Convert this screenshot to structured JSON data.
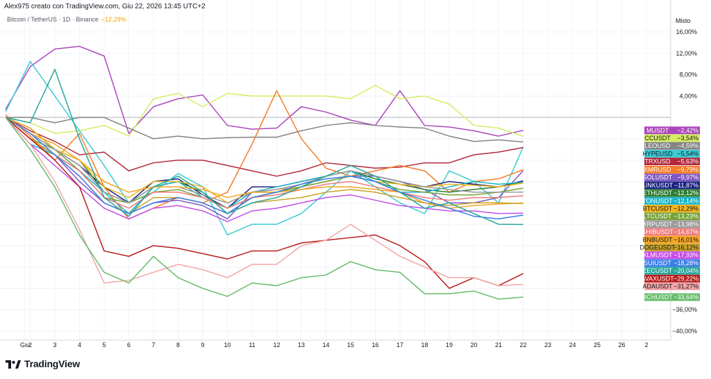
{
  "header": {
    "credit": "Alex975 creato con TradingView.com, Giu 22, 2026 13:45 UTC+2",
    "symbol": "Bitcoin / TetherUS · 1D · Binance",
    "change": "−12,29%"
  },
  "logo": {
    "text": "TradingView",
    "icon": "tradingview-logo-icon"
  },
  "chart_data": {
    "type": "line",
    "scale_label": "Misto",
    "ylim": [
      -42,
      18
    ],
    "y_ticks": [
      {
        "v": 16,
        "label": "16,00%"
      },
      {
        "v": 12,
        "label": "12,00%"
      },
      {
        "v": 8,
        "label": "8,00%"
      },
      {
        "v": 4,
        "label": "4,00%"
      },
      {
        "v": -28,
        "label": "−28,00%"
      },
      {
        "v": -36,
        "label": "−36,00%"
      },
      {
        "v": -40,
        "label": "−40,00%"
      }
    ],
    "x_ticks": [
      "Giu",
      "2",
      "3",
      "4",
      "5",
      "6",
      "7",
      "8",
      "9",
      "10",
      "11",
      "12",
      "13",
      "14",
      "15",
      "16",
      "17",
      "18",
      "19",
      "20",
      "21",
      "22",
      "23",
      "24",
      "25",
      "26",
      "2"
    ],
    "x_start": 0,
    "grid": true,
    "zero_line": 0,
    "series": [
      {
        "name": "MUSDT",
        "label": "−2,42%",
        "value": -2.42,
        "color": "#ab47bc",
        "values": [
          1.5,
          9.5,
          12.8,
          13.3,
          11.5,
          -3,
          2,
          3.5,
          4.2,
          -1.5,
          -2.2,
          -2,
          2,
          1,
          -0.5,
          -1.5,
          5,
          -1.5,
          -1.8,
          -2.5,
          -3.5,
          -2.42
        ]
      },
      {
        "name": "CCUSDT",
        "label": "−3,54%",
        "value": -3.54,
        "color": "#d4ed62",
        "values": [
          0,
          -1,
          -3,
          -2.5,
          -1.5,
          -3.5,
          3.5,
          4.5,
          2,
          4.5,
          4,
          4,
          4,
          4,
          3.5,
          6,
          3.5,
          4,
          2.5,
          -1.5,
          -2,
          -3.54
        ]
      },
      {
        "name": "LEOUSD",
        "label": "−4,59%",
        "value": -4.59,
        "color": "#848484",
        "values": [
          0,
          0,
          -1,
          0,
          0,
          -2,
          -4,
          -3.5,
          -4,
          -3.8,
          -3.7,
          -3.7,
          -2.5,
          -1.5,
          -1,
          -1.5,
          -1.8,
          -2,
          -3.5,
          -4.5,
          -4.2,
          -4.59
        ]
      },
      {
        "name": "HYPEUSD",
        "label": "−5,54%",
        "value": -5.54,
        "color": "#3ccbd3",
        "values": [
          1,
          10.5,
          4,
          -2.5,
          -9,
          -16,
          -14,
          -10.5,
          -13,
          -22,
          -20,
          -20,
          -18,
          -14,
          -10,
          -13,
          -16,
          -18,
          -10,
          -12,
          -16,
          -5.54
        ]
      },
      {
        "name": "TRXUSD",
        "label": "−5,63%",
        "value": -5.63,
        "color": "#b2283c",
        "values": [
          0,
          -2.5,
          -4.5,
          -7,
          -6.5,
          -10,
          -8.5,
          -8,
          -8,
          -9,
          -10,
          -11,
          -10,
          -8.5,
          -9,
          -9.5,
          -9.3,
          -8.5,
          -8.5,
          -7,
          -6.5,
          -5.63
        ]
      },
      {
        "name": "XMRUSD",
        "label": "−9,79%",
        "value": -9.79,
        "color": "#f57c2a",
        "values": [
          0.5,
          -3.5,
          -8,
          -3,
          -13,
          -19,
          -17,
          -15,
          -16,
          -14,
          -5,
          5,
          -4,
          -9.5,
          -11,
          -10,
          -9,
          -10,
          -14,
          -12,
          -11.5,
          -9.79
        ]
      },
      {
        "name": "SOLUSDT",
        "label": "−9,97%",
        "value": -9.97,
        "color": "#7e57c2",
        "values": [
          0,
          -4,
          -7,
          -12,
          -16,
          -18,
          -16,
          -15.5,
          -16.5,
          -19,
          -14,
          -14,
          -13,
          -12,
          -11,
          -11,
          -12,
          -13.5,
          -16,
          -16,
          -15,
          -9.97
        ]
      },
      {
        "name": "LINKUSDT",
        "label": "−11,87%",
        "value": -11.87,
        "color": "#1a237e",
        "values": [
          0,
          -2,
          -6,
          -9,
          -13,
          -16,
          -12,
          -11.5,
          -14.5,
          -17,
          -13,
          -13,
          -12,
          -11,
          -10,
          -11,
          -12,
          -13,
          -12,
          -12.5,
          -13,
          -11.87
        ]
      },
      {
        "name": "ETHUSDT",
        "label": "−12,12%",
        "value": -12.12,
        "color": "#2e7d32",
        "values": [
          0,
          -3,
          -6,
          -8,
          -14,
          -16,
          -13,
          -12,
          -14,
          -18,
          -15,
          -14,
          -13,
          -11,
          -10,
          -11.5,
          -12.5,
          -13.5,
          -14,
          -13.5,
          -13,
          -12.12
        ]
      },
      {
        "name": "TONUSDT",
        "label": "−12,14%",
        "value": -12.14,
        "color": "#19b6c9",
        "values": [
          0,
          -5,
          -7,
          -10,
          -14,
          -18,
          -13,
          -12,
          -15,
          -17,
          -14,
          -13,
          -12,
          -11,
          -10,
          -12,
          -14,
          -14,
          -13,
          -12,
          -12.5,
          -12.14
        ]
      },
      {
        "name": "BTCUSDT",
        "label": "−12,29%",
        "value": -12.29,
        "color": "#f2b51e",
        "values": [
          0,
          -2,
          -6,
          -8,
          -13,
          -15,
          -12,
          -12,
          -13,
          -16,
          -14,
          -13.5,
          -13,
          -12,
          -11,
          -12,
          -12.5,
          -13,
          -12.5,
          -12.7,
          -13,
          -12.29
        ]
      },
      {
        "name": "LTCUSDT",
        "label": "−13,23%",
        "value": -13.23,
        "color": "#76a23a",
        "values": [
          0,
          -4,
          -6,
          -10,
          -15,
          -16,
          -14,
          -13.5,
          -15,
          -17,
          -15,
          -14,
          -13,
          -12,
          -11,
          -12,
          -13.5,
          -14,
          -14.5,
          -14.5,
          -14,
          -13.23
        ]
      },
      {
        "name": "XRPUSDT",
        "label": "−13,98%",
        "value": -13.98,
        "color": "#9a9a9a",
        "values": [
          0,
          -3,
          -6,
          -9,
          -14,
          -16,
          -13,
          -13,
          -14.5,
          -16,
          -14,
          -13.5,
          -12.5,
          -11,
          -10,
          -11,
          -12,
          -13,
          -13.5,
          -14,
          -14,
          -13.98
        ]
      },
      {
        "name": "SHIBUSDT",
        "label": "−14,67%",
        "value": -14.67,
        "color": "#ef7a7a",
        "values": [
          0,
          -4,
          -7,
          -10,
          -15,
          -17,
          -14,
          -14,
          -15,
          -17,
          -15,
          -14.5,
          -13.5,
          -12.5,
          -12,
          -13,
          -14,
          -15,
          -15.5,
          -15,
          -15,
          -14.67
        ]
      },
      {
        "name": "BNBUSDT",
        "label": "−16,01%",
        "value": -16.01,
        "color": "#f5a623",
        "values": [
          0,
          -3,
          -5,
          -8,
          -12,
          -14,
          -13,
          -13,
          -13.5,
          -15,
          -14,
          -14,
          -13.5,
          -13,
          -13,
          -13.5,
          -14,
          -16,
          -17,
          -16.5,
          -16.2,
          -16.01
        ]
      },
      {
        "name": "DOGEUSDT",
        "label": "−16,12%",
        "value": -16.12,
        "color": "#c9a228",
        "values": [
          0,
          -4,
          -7,
          -11,
          -16,
          -18,
          -15,
          -15,
          -16,
          -18,
          -16,
          -15.5,
          -15,
          -14,
          -13.5,
          -14,
          -15,
          -16,
          -16.5,
          -16,
          -16,
          -16.12
        ]
      },
      {
        "name": "XLMUSDT",
        "label": "−17,93%",
        "value": -17.93,
        "color": "#c64ee8",
        "values": [
          0,
          -5,
          -9,
          -13,
          -17,
          -19,
          -17,
          -16.5,
          -17.5,
          -19.5,
          -17.5,
          -17,
          -16,
          -15,
          -14.5,
          -15.5,
          -16.5,
          -17,
          -17.5,
          -17.5,
          -18,
          -17.93
        ]
      },
      {
        "name": "SUIUSDT",
        "label": "−18,28%",
        "value": -18.28,
        "color": "#3b7de8",
        "values": [
          0,
          -3,
          -7,
          -11,
          -16,
          -18,
          -16,
          -15,
          -16,
          -18,
          -15,
          -14,
          -12.5,
          -11.5,
          -11,
          -12,
          -14,
          -15.5,
          -17,
          -18.5,
          -19,
          -18.28
        ]
      },
      {
        "name": "ZECUSDT",
        "label": "−20,04%",
        "value": -20.04,
        "color": "#26a69a",
        "values": [
          0,
          -1,
          9,
          -4,
          -15,
          -18.5,
          -13,
          -11,
          -14,
          -18,
          -16,
          -15,
          -13,
          -11,
          -9,
          -11,
          -14,
          -17,
          -16,
          -18,
          -20,
          -20.04
        ]
      },
      {
        "name": "AVAXUSDT",
        "label": "−29,22%",
        "value": -29.22,
        "color": "#b71c1c",
        "values": [
          0,
          -4,
          -8,
          -13,
          -25,
          -26,
          -24,
          -24.5,
          -25.5,
          -26.5,
          -25,
          -25,
          -23.5,
          -23,
          -22.5,
          -22,
          -24,
          -27,
          -32,
          -30,
          -31.5,
          -29.22
        ]
      },
      {
        "name": "ADAUSDT",
        "label": "−31,27%",
        "value": -31.27,
        "color": "#f4a6a6",
        "values": [
          0,
          -5,
          -12,
          -21,
          -31,
          -30.5,
          -29,
          -27.5,
          -28.5,
          -30,
          -27.5,
          -27.5,
          -24,
          -23,
          -20,
          -23,
          -26,
          -28,
          -30,
          -30,
          -31.5,
          -31.27
        ]
      },
      {
        "name": "BCHUSDT",
        "label": "−33,64%",
        "value": -33.64,
        "color": "#66bb6a",
        "values": [
          0,
          -6,
          -13,
          -22,
          -29,
          -31,
          -26,
          -30,
          -32,
          -33.5,
          -31,
          -31.5,
          -30,
          -29.5,
          -27,
          -28.5,
          -29,
          -33,
          -33,
          -32.5,
          -34,
          -33.64
        ]
      }
    ]
  }
}
